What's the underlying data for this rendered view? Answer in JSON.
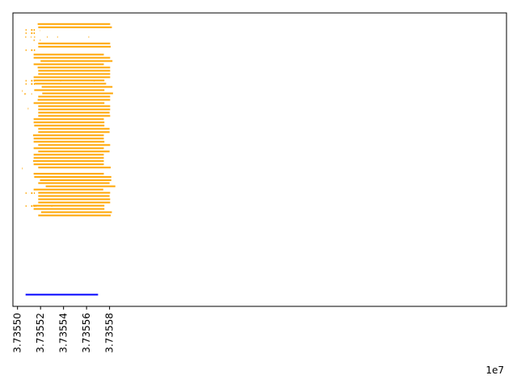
{
  "chart_data": {
    "type": "bar",
    "orientation": "horizontal",
    "title": "",
    "xlabel": "",
    "ylabel": "",
    "x_offset_label": "1e7",
    "xlim": [
      37354960,
      37359250
    ],
    "ylim": [
      0,
      100
    ],
    "grid": false,
    "x_ticks": [
      {
        "value": 37355000,
        "label": "3.73550"
      },
      {
        "value": 37355200,
        "label": "3.73552"
      },
      {
        "value": 37355400,
        "label": "3.73554"
      },
      {
        "value": 37355600,
        "label": "3.73556"
      },
      {
        "value": 37355800,
        "label": "3.73558"
      }
    ],
    "colors": {
      "reads": "#ffa500",
      "reference": "#0000ff",
      "axes": "#000000"
    },
    "reference_span": {
      "start": 37355070,
      "end": 37355700,
      "y": 4
    },
    "reads": [
      [
        37355175,
        37355805,
        96.2
      ],
      [
        37355180,
        37355820,
        95.1
      ],
      [
        37355195,
        37355197,
        94.0
      ],
      [
        37355180,
        37355805,
        89.6
      ],
      [
        37355180,
        37355810,
        88.5
      ],
      [
        37355140,
        37355750,
        85.8
      ],
      [
        37355140,
        37355805,
        84.7
      ],
      [
        37355200,
        37355825,
        83.6
      ],
      [
        37355140,
        37355750,
        82.5
      ],
      [
        37355175,
        37355805,
        81.4
      ],
      [
        37355180,
        37355805,
        80.3
      ],
      [
        37355180,
        37355805,
        79.2
      ],
      [
        37355140,
        37355805,
        78.1
      ],
      [
        37355140,
        37355755,
        77.0
      ],
      [
        37355150,
        37355770,
        75.9
      ],
      [
        37355210,
        37355825,
        74.8
      ],
      [
        37355145,
        37355755,
        73.7
      ],
      [
        37355215,
        37355830,
        72.6
      ],
      [
        37355180,
        37355805,
        71.5
      ],
      [
        37355175,
        37355805,
        70.4
      ],
      [
        37355140,
        37355755,
        69.3
      ],
      [
        37355180,
        37355805,
        68.2
      ],
      [
        37355180,
        37355805,
        67.1
      ],
      [
        37355180,
        37355800,
        66.0
      ],
      [
        37355180,
        37355805,
        64.9
      ],
      [
        37355140,
        37355750,
        63.8
      ],
      [
        37355140,
        37355755,
        62.7
      ],
      [
        37355145,
        37355755,
        61.6
      ],
      [
        37355180,
        37355800,
        60.5
      ],
      [
        37355180,
        37355800,
        59.4
      ],
      [
        37355135,
        37355750,
        58.3
      ],
      [
        37355140,
        37355750,
        57.2
      ],
      [
        37355140,
        37355755,
        56.1
      ],
      [
        37355180,
        37355805,
        55.0
      ],
      [
        37355140,
        37355750,
        53.9
      ],
      [
        37355180,
        37355800,
        52.8
      ],
      [
        37355140,
        37355750,
        51.7
      ],
      [
        37355140,
        37355750,
        50.6
      ],
      [
        37355135,
        37355750,
        49.5
      ],
      [
        37355140,
        37355750,
        48.4
      ],
      [
        37355180,
        37355810,
        47.3
      ],
      [
        37355140,
        37355750,
        45.2
      ],
      [
        37355145,
        37355815,
        44.1
      ],
      [
        37355195,
        37355815,
        43.0
      ],
      [
        37355180,
        37355800,
        42.0
      ],
      [
        37355245,
        37355850,
        40.9
      ],
      [
        37355140,
        37355745,
        39.8
      ],
      [
        37355180,
        37355805,
        38.7
      ],
      [
        37355180,
        37355800,
        37.6
      ],
      [
        37355180,
        37355805,
        36.5
      ],
      [
        37355180,
        37355805,
        35.4
      ],
      [
        37355135,
        37355755,
        34.3
      ],
      [
        37355140,
        37355755,
        33.2
      ],
      [
        37355205,
        37355820,
        32.1
      ],
      [
        37355180,
        37355810,
        31.0
      ]
    ],
    "short_reads": [
      [
        37355070,
        37355078,
        94.2
      ],
      [
        37355118,
        37355130,
        94.2
      ],
      [
        37355140,
        37355150,
        94.2
      ],
      [
        37355070,
        37355078,
        93.1
      ],
      [
        37355118,
        37355130,
        93.1
      ],
      [
        37355140,
        37355150,
        93.1
      ],
      [
        37355068,
        37355075,
        91.8
      ],
      [
        37355115,
        37355120,
        91.8
      ],
      [
        37355145,
        37355152,
        91.8
      ],
      [
        37355255,
        37355260,
        91.8
      ],
      [
        37355345,
        37355350,
        91.8
      ],
      [
        37355617,
        37355622,
        91.8
      ],
      [
        37355140,
        37355148,
        90.7
      ],
      [
        37355195,
        37355200,
        90.7
      ],
      [
        37355070,
        37355078,
        87.3
      ],
      [
        37355118,
        37355130,
        87.3
      ],
      [
        37355142,
        37355152,
        87.3
      ],
      [
        37355070,
        37355078,
        76.9
      ],
      [
        37355118,
        37355130,
        76.9
      ],
      [
        37355142,
        37355152,
        76.9
      ],
      [
        37355372,
        37355377,
        76.9
      ],
      [
        37355665,
        37355670,
        76.9
      ],
      [
        37355070,
        37355078,
        75.8
      ],
      [
        37355118,
        37355130,
        75.8
      ],
      [
        37355142,
        37355150,
        75.8
      ],
      [
        37355040,
        37355045,
        73.4
      ],
      [
        37355060,
        37355065,
        72.4
      ],
      [
        37355068,
        37355073,
        72.4
      ],
      [
        37355120,
        37355125,
        72.4
      ],
      [
        37355090,
        37355095,
        67.4
      ],
      [
        37355040,
        37355045,
        47.0
      ],
      [
        37355070,
        37355078,
        38.6
      ],
      [
        37355118,
        37355130,
        38.6
      ],
      [
        37355142,
        37355150,
        38.6
      ],
      [
        37355070,
        37355078,
        34.2
      ],
      [
        37355118,
        37355130,
        34.2
      ],
      [
        37355142,
        37355150,
        34.2
      ],
      [
        37355155,
        37355162,
        34.2
      ],
      [
        37355295,
        37355300,
        34.2
      ]
    ]
  }
}
